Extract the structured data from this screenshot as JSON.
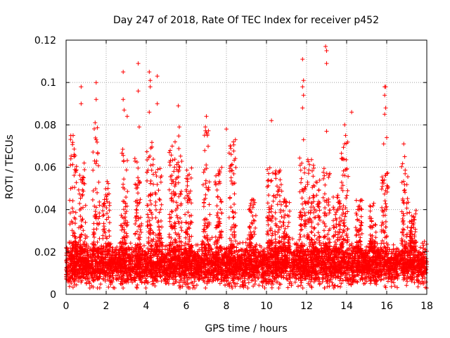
{
  "chart_data": {
    "type": "scatter",
    "title": "Day 247 of 2018, Rate Of TEC Index for receiver p452",
    "xlabel": "GPS time / hours",
    "ylabel": "ROTI / TECUs",
    "xlim": [
      0,
      18
    ],
    "ylim": [
      0,
      0.12
    ],
    "grid": true,
    "marker": "+",
    "marker_color": "#ff0000",
    "xticks": [
      0,
      2,
      4,
      6,
      8,
      10,
      12,
      14,
      16,
      18
    ],
    "xtick_labels": [
      "0",
      "2",
      "4",
      "6",
      "8",
      "10",
      "12",
      "14",
      "16",
      "18"
    ],
    "yticks": [
      0,
      0.02,
      0.04,
      0.06,
      0.08,
      0.1,
      0.12
    ],
    "ytick_labels": [
      "0",
      "0.02",
      "0.04",
      "0.06",
      "0.08",
      "0.1",
      "0.12"
    ],
    "series": [
      {
        "name": "ROTI",
        "approx_points": 5200,
        "baseline_median": 0.014,
        "bulk_range": [
          0.004,
          0.03
        ],
        "notable_points": [
          {
            "x": 0.35,
            "y": 0.075
          },
          {
            "x": 0.4,
            "y": 0.066
          },
          {
            "x": 0.75,
            "y": 0.098
          },
          {
            "x": 0.75,
            "y": 0.09
          },
          {
            "x": 0.9,
            "y": 0.062
          },
          {
            "x": 1.5,
            "y": 0.1
          },
          {
            "x": 1.5,
            "y": 0.092
          },
          {
            "x": 1.45,
            "y": 0.081
          },
          {
            "x": 1.5,
            "y": 0.073
          },
          {
            "x": 2.85,
            "y": 0.105
          },
          {
            "x": 2.85,
            "y": 0.092
          },
          {
            "x": 2.9,
            "y": 0.087
          },
          {
            "x": 3.05,
            "y": 0.084
          },
          {
            "x": 3.6,
            "y": 0.109
          },
          {
            "x": 3.6,
            "y": 0.096
          },
          {
            "x": 3.65,
            "y": 0.079
          },
          {
            "x": 4.15,
            "y": 0.105
          },
          {
            "x": 4.2,
            "y": 0.101
          },
          {
            "x": 4.2,
            "y": 0.098
          },
          {
            "x": 4.15,
            "y": 0.086
          },
          {
            "x": 4.55,
            "y": 0.103
          },
          {
            "x": 4.55,
            "y": 0.09
          },
          {
            "x": 5.6,
            "y": 0.089
          },
          {
            "x": 5.65,
            "y": 0.079
          },
          {
            "x": 7.0,
            "y": 0.084
          },
          {
            "x": 6.95,
            "y": 0.079
          },
          {
            "x": 7.05,
            "y": 0.075
          },
          {
            "x": 8.0,
            "y": 0.078
          },
          {
            "x": 8.2,
            "y": 0.07
          },
          {
            "x": 8.45,
            "y": 0.073
          },
          {
            "x": 10.25,
            "y": 0.082
          },
          {
            "x": 11.8,
            "y": 0.111
          },
          {
            "x": 11.85,
            "y": 0.101
          },
          {
            "x": 11.8,
            "y": 0.098
          },
          {
            "x": 11.85,
            "y": 0.094
          },
          {
            "x": 11.8,
            "y": 0.088
          },
          {
            "x": 11.85,
            "y": 0.073
          },
          {
            "x": 12.95,
            "y": 0.117
          },
          {
            "x": 13.0,
            "y": 0.115
          },
          {
            "x": 13.0,
            "y": 0.109
          },
          {
            "x": 13.0,
            "y": 0.077
          },
          {
            "x": 14.25,
            "y": 0.086
          },
          {
            "x": 13.9,
            "y": 0.08
          },
          {
            "x": 13.95,
            "y": 0.075
          },
          {
            "x": 13.9,
            "y": 0.071
          },
          {
            "x": 15.9,
            "y": 0.098
          },
          {
            "x": 15.95,
            "y": 0.098
          },
          {
            "x": 15.9,
            "y": 0.094
          },
          {
            "x": 15.95,
            "y": 0.088
          },
          {
            "x": 15.9,
            "y": 0.085
          },
          {
            "x": 16.0,
            "y": 0.074
          },
          {
            "x": 15.85,
            "y": 0.071
          },
          {
            "x": 16.0,
            "y": 0.057
          },
          {
            "x": 16.85,
            "y": 0.071
          },
          {
            "x": 16.9,
            "y": 0.065
          }
        ],
        "peak_regions": [
          {
            "x_center": 0.35,
            "peak": 0.075
          },
          {
            "x_center": 0.8,
            "peak": 0.063
          },
          {
            "x_center": 1.5,
            "peak": 0.08
          },
          {
            "x_center": 2.0,
            "peak": 0.054
          },
          {
            "x_center": 2.9,
            "peak": 0.07
          },
          {
            "x_center": 3.6,
            "peak": 0.065
          },
          {
            "x_center": 4.2,
            "peak": 0.072
          },
          {
            "x_center": 4.6,
            "peak": 0.06
          },
          {
            "x_center": 5.3,
            "peak": 0.07
          },
          {
            "x_center": 5.6,
            "peak": 0.078
          },
          {
            "x_center": 6.1,
            "peak": 0.06
          },
          {
            "x_center": 7.0,
            "peak": 0.08
          },
          {
            "x_center": 7.6,
            "peak": 0.06
          },
          {
            "x_center": 8.3,
            "peak": 0.072
          },
          {
            "x_center": 9.3,
            "peak": 0.045
          },
          {
            "x_center": 10.2,
            "peak": 0.06
          },
          {
            "x_center": 10.6,
            "peak": 0.059
          },
          {
            "x_center": 11.0,
            "peak": 0.045
          },
          {
            "x_center": 11.8,
            "peak": 0.065
          },
          {
            "x_center": 12.2,
            "peak": 0.065
          },
          {
            "x_center": 12.5,
            "peak": 0.055
          },
          {
            "x_center": 13.0,
            "peak": 0.06
          },
          {
            "x_center": 13.5,
            "peak": 0.05
          },
          {
            "x_center": 13.9,
            "peak": 0.073
          },
          {
            "x_center": 14.6,
            "peak": 0.045
          },
          {
            "x_center": 15.3,
            "peak": 0.045
          },
          {
            "x_center": 15.9,
            "peak": 0.06
          },
          {
            "x_center": 16.9,
            "peak": 0.062
          },
          {
            "x_center": 17.3,
            "peak": 0.04
          }
        ]
      }
    ]
  }
}
